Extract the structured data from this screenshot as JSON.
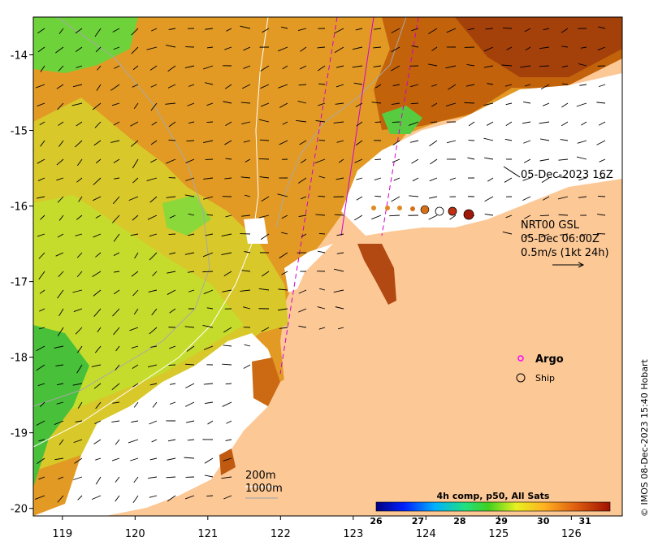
{
  "map": {
    "x_ticks": [
      "119",
      "120",
      "121",
      "122",
      "123",
      "124",
      "125",
      "126"
    ],
    "y_ticks": [
      "-14",
      "-15",
      "-16",
      "-17",
      "-18",
      "-19",
      "-20"
    ],
    "extent": {
      "lon": [
        118.6,
        126.7
      ],
      "lat": [
        -20.1,
        -13.5
      ]
    }
  },
  "annotations": {
    "satellite_pass": "05-Dec-2023 16Z",
    "current_title": "NRT00 GSL",
    "current_time": "05-Dec 06:00Z",
    "current_scale": "0.5m/s (1kt 24h)",
    "isobath_1": "200m",
    "isobath_2": "1000m"
  },
  "legend": {
    "argo": "Argo",
    "ship": "Ship"
  },
  "colorbar": {
    "title": "4h comp, p50, All Sats",
    "ticks": [
      "26",
      "27",
      "28",
      "29",
      "30",
      "31"
    ],
    "range": [
      26,
      31.6
    ]
  },
  "credit": "© IMOS 08-Dec-2023 15:40 Hobart",
  "colors": {
    "land": "#fcc896",
    "cloud": "#ffffff",
    "sst_warm": "#c2620a",
    "sst_mid": "#e8a222",
    "sst_cool": "#cfe22a",
    "sst_green": "#4cc83a",
    "argo": "#ff00ff",
    "track": "#d000d0"
  }
}
